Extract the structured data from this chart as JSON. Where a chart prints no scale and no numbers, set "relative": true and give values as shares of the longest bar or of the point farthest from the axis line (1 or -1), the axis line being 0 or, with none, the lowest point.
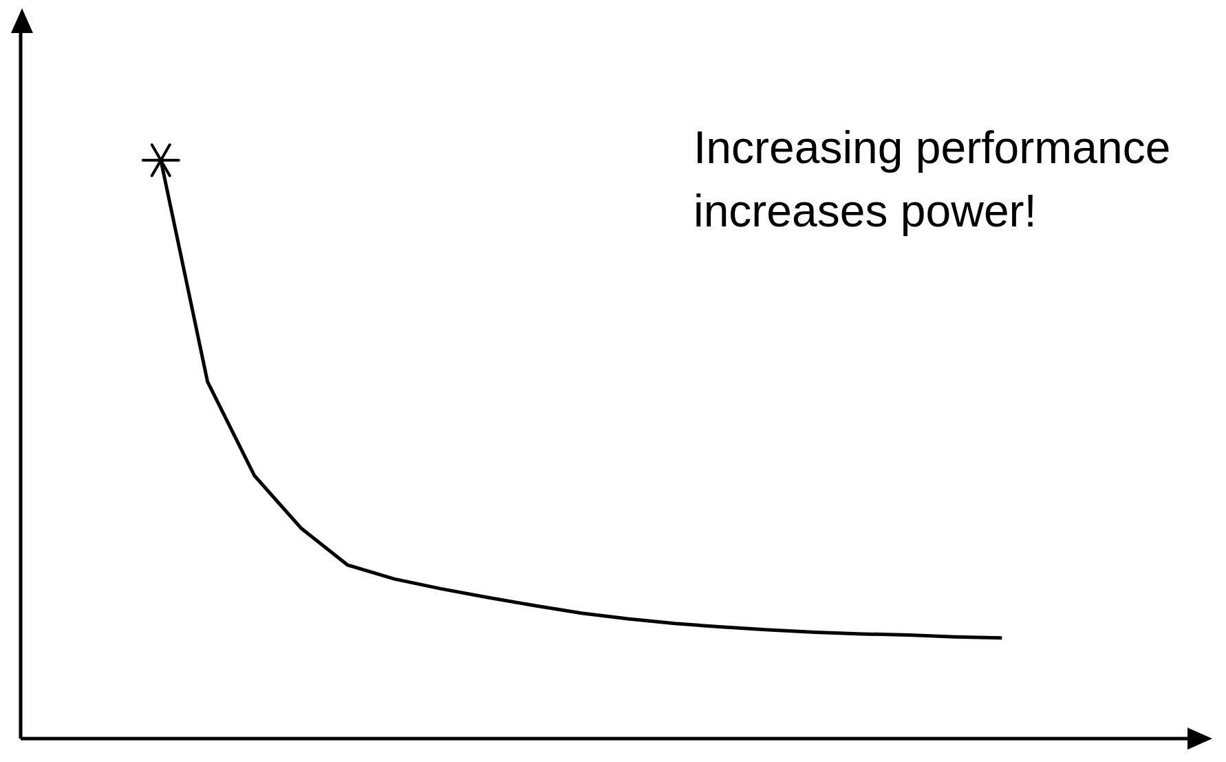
{
  "chart_data": {
    "type": "line",
    "relative": true,
    "categories": [
      null,
      null,
      null,
      null,
      null,
      null,
      null,
      null,
      null,
      null,
      null,
      null,
      null,
      null,
      null,
      null,
      null,
      null,
      null
    ],
    "series": [
      {
        "color": "#000000",
        "values": [
          1,
          0.617,
          0.455,
          0.364,
          0.3,
          0.276,
          0.259,
          0.244,
          0.23,
          0.217,
          0.207,
          0.199,
          0.193,
          0.188,
          0.184,
          0.181,
          0.179,
          0.176,
          0.174
        ]
      }
    ],
    "annotations": [
      "Increasing performance increases power!"
    ]
  }
}
